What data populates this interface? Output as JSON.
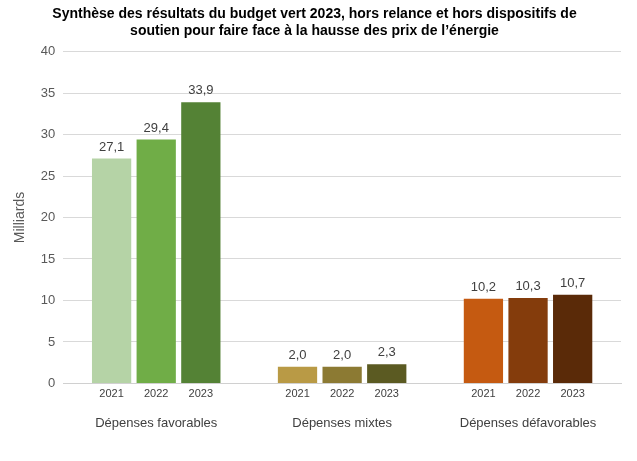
{
  "chart_data": {
    "type": "bar",
    "title": [
      "Synthèse des résultats du budget vert 2023, hors relance et hors dispositifs de",
      "soutien pour faire face à la hausse des prix de l’énergie"
    ],
    "ylabel": "Milliards",
    "categories": [
      "Dépenses favorables",
      "Dépenses mixtes",
      "Dépenses défavorables"
    ],
    "series": [
      {
        "name": "2021",
        "colors": [
          "#b5d3a6",
          "#b99a45",
          "#c55a11"
        ],
        "values": [
          27.1,
          2.0,
          10.2
        ],
        "value_labels": [
          "27,1",
          "2,0",
          "10,2"
        ]
      },
      {
        "name": "2022",
        "colors": [
          "#70ad47",
          "#8c7a33",
          "#843c0c"
        ],
        "values": [
          29.4,
          2.0,
          10.3
        ],
        "value_labels": [
          "29,4",
          "2,0",
          "10,3"
        ]
      },
      {
        "name": "2023",
        "colors": [
          "#548235",
          "#5b5a22",
          "#5a2a08"
        ],
        "values": [
          33.9,
          2.3,
          10.7
        ],
        "value_labels": [
          "33,9",
          "2,3",
          "10,7"
        ]
      }
    ],
    "ylim": [
      0,
      40
    ],
    "yticks": [
      0,
      5,
      10,
      15,
      20,
      25,
      30,
      35,
      40
    ],
    "grid": true,
    "data_labels": true
  }
}
